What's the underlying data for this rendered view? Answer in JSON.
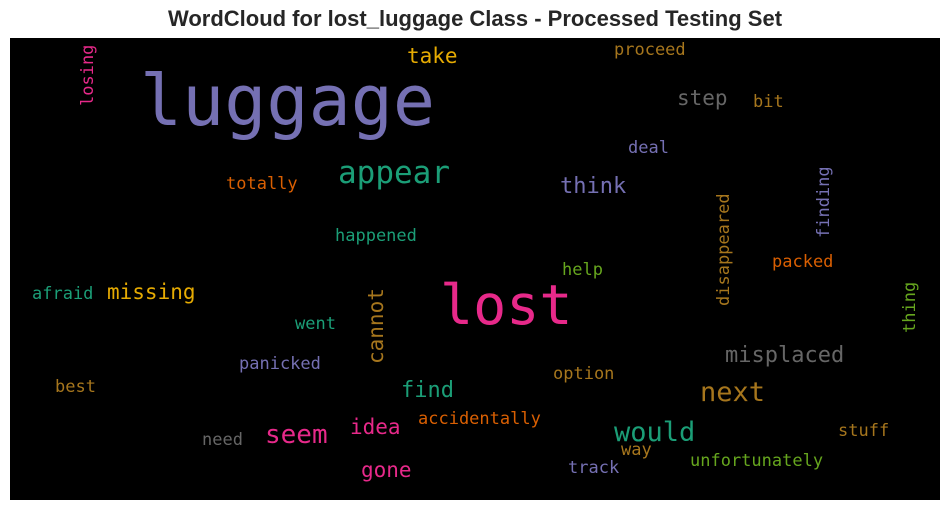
{
  "title": "WordCloud for lost_luggage Class - Processed Testing Set",
  "words": [
    {
      "text": "luggage",
      "color": "#7570b3"
    },
    {
      "text": "lost",
      "color": "#e7298a"
    },
    {
      "text": "appear",
      "color": "#1b9e77"
    },
    {
      "text": "take",
      "color": "#e6ab02"
    },
    {
      "text": "proceed",
      "color": "#a6761d"
    },
    {
      "text": "losing",
      "color": "#e7298a"
    },
    {
      "text": "step",
      "color": "#666666"
    },
    {
      "text": "bit",
      "color": "#a6761d"
    },
    {
      "text": "deal",
      "color": "#7570b3"
    },
    {
      "text": "totally",
      "color": "#d95f02"
    },
    {
      "text": "think",
      "color": "#7570b3"
    },
    {
      "text": "finding",
      "color": "#7570b3"
    },
    {
      "text": "disappeared",
      "color": "#a6761d"
    },
    {
      "text": "happened",
      "color": "#1b9e77"
    },
    {
      "text": "help",
      "color": "#66a61e"
    },
    {
      "text": "packed",
      "color": "#d95f02"
    },
    {
      "text": "afraid",
      "color": "#1b9e77"
    },
    {
      "text": "missing",
      "color": "#e6ab02"
    },
    {
      "text": "cannot",
      "color": "#a6761d"
    },
    {
      "text": "thing",
      "color": "#66a61e"
    },
    {
      "text": "went",
      "color": "#1b9e77"
    },
    {
      "text": "misplaced",
      "color": "#666666"
    },
    {
      "text": "panicked",
      "color": "#7570b3"
    },
    {
      "text": "option",
      "color": "#a6761d"
    },
    {
      "text": "best",
      "color": "#a6761d"
    },
    {
      "text": "find",
      "color": "#1b9e77"
    },
    {
      "text": "next",
      "color": "#a6761d"
    },
    {
      "text": "accidentally",
      "color": "#d95f02"
    },
    {
      "text": "seem",
      "color": "#e7298a"
    },
    {
      "text": "idea",
      "color": "#e7298a"
    },
    {
      "text": "would",
      "color": "#1b9e77"
    },
    {
      "text": "stuff",
      "color": "#a6761d"
    },
    {
      "text": "need",
      "color": "#666666"
    },
    {
      "text": "way",
      "color": "#a6761d"
    },
    {
      "text": "unfortunately",
      "color": "#66a61e"
    },
    {
      "text": "gone",
      "color": "#e7298a"
    },
    {
      "text": "track",
      "color": "#7570b3"
    }
  ]
}
